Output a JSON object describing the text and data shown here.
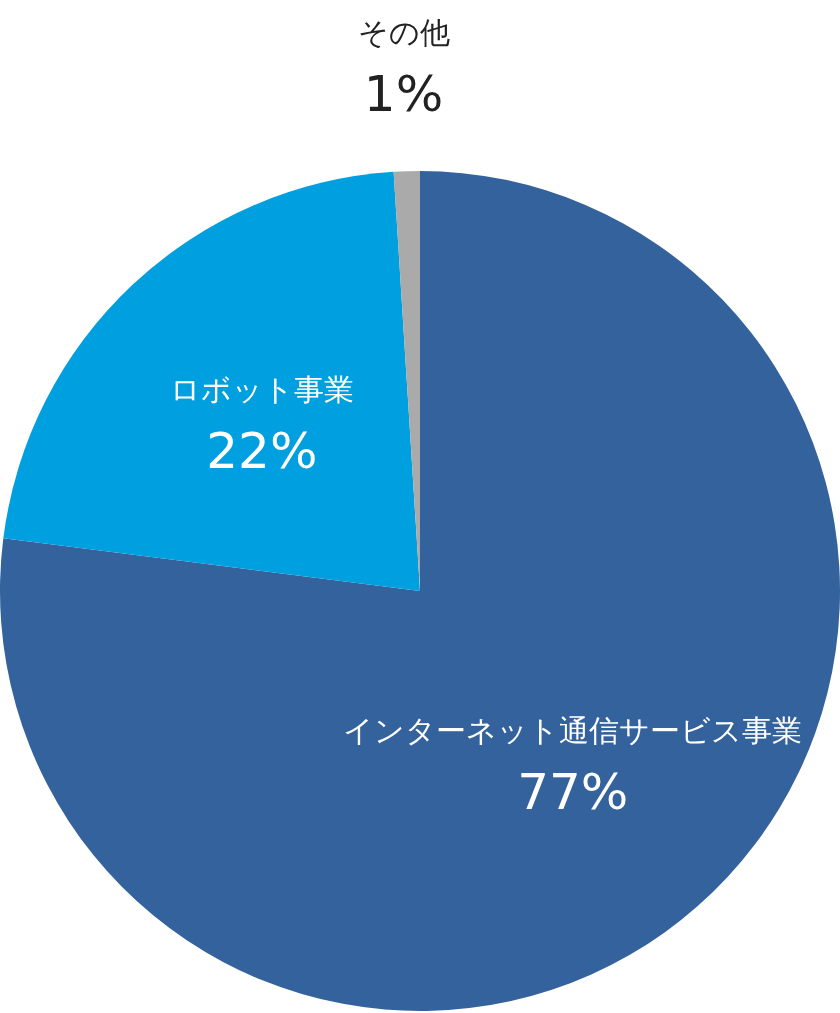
{
  "chart_data": {
    "type": "pie",
    "categories": [
      "インターネット通信サービス事業",
      "ロボット事業",
      "その他"
    ],
    "values": [
      77,
      22,
      1
    ],
    "colors": [
      "#33629c",
      "#009fdf",
      "#aaaaaa"
    ],
    "value_labels": [
      "77%",
      "22%",
      "1%"
    ]
  }
}
